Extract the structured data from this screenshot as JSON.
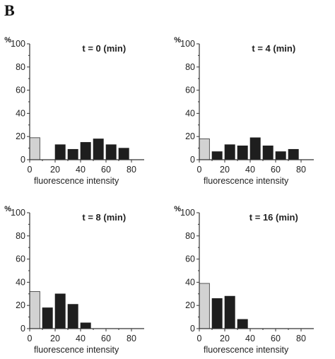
{
  "figure_label": "B",
  "colors": {
    "dark_bar": "#1e1e1e",
    "light_bar": "#d2d2d2",
    "light_bar_edge": "#555555",
    "axis": "#333333"
  },
  "chart_data": [
    {
      "type": "bar",
      "title": "t = 0 (min)",
      "xlabel": "fluorescence intensity",
      "ylabel": "%",
      "xlim": [
        0,
        90
      ],
      "ylim": [
        0,
        100
      ],
      "xticks": [
        0,
        20,
        40,
        60,
        80
      ],
      "yticks": [
        0,
        20,
        40,
        60,
        80,
        100
      ],
      "grid": false,
      "bars": [
        {
          "x0": 0,
          "x1": 8,
          "value": 19,
          "style": "light"
        },
        {
          "x0": 20,
          "x1": 28,
          "value": 13,
          "style": "dark"
        },
        {
          "x0": 30,
          "x1": 38,
          "value": 9,
          "style": "dark"
        },
        {
          "x0": 40,
          "x1": 48,
          "value": 15,
          "style": "dark"
        },
        {
          "x0": 50,
          "x1": 58,
          "value": 18,
          "style": "dark"
        },
        {
          "x0": 60,
          "x1": 68,
          "value": 13,
          "style": "dark"
        },
        {
          "x0": 70,
          "x1": 78,
          "value": 10,
          "style": "dark"
        }
      ]
    },
    {
      "type": "bar",
      "title": "t = 4 (min)",
      "xlabel": "fluorescence intensity",
      "ylabel": "%",
      "xlim": [
        0,
        90
      ],
      "ylim": [
        0,
        100
      ],
      "xticks": [
        0,
        20,
        40,
        60,
        80
      ],
      "yticks": [
        0,
        20,
        40,
        60,
        80,
        100
      ],
      "grid": false,
      "bars": [
        {
          "x0": 0,
          "x1": 8,
          "value": 18,
          "style": "light"
        },
        {
          "x0": 10,
          "x1": 18,
          "value": 7,
          "style": "dark"
        },
        {
          "x0": 20,
          "x1": 28,
          "value": 13,
          "style": "dark"
        },
        {
          "x0": 30,
          "x1": 38,
          "value": 12,
          "style": "dark"
        },
        {
          "x0": 40,
          "x1": 48,
          "value": 19,
          "style": "dark"
        },
        {
          "x0": 50,
          "x1": 58,
          "value": 12,
          "style": "dark"
        },
        {
          "x0": 60,
          "x1": 68,
          "value": 7,
          "style": "dark"
        },
        {
          "x0": 70,
          "x1": 78,
          "value": 9,
          "style": "dark"
        }
      ]
    },
    {
      "type": "bar",
      "title": "t = 8 (min)",
      "xlabel": "fluorescence intensity",
      "ylabel": "%",
      "xlim": [
        0,
        90
      ],
      "ylim": [
        0,
        100
      ],
      "xticks": [
        0,
        20,
        40,
        60,
        80
      ],
      "yticks": [
        0,
        20,
        40,
        60,
        80,
        100
      ],
      "grid": false,
      "bars": [
        {
          "x0": 0,
          "x1": 8,
          "value": 32,
          "style": "light"
        },
        {
          "x0": 10,
          "x1": 18,
          "value": 18,
          "style": "dark"
        },
        {
          "x0": 20,
          "x1": 28,
          "value": 30,
          "style": "dark"
        },
        {
          "x0": 30,
          "x1": 38,
          "value": 21,
          "style": "dark"
        },
        {
          "x0": 40,
          "x1": 48,
          "value": 5,
          "style": "dark"
        }
      ]
    },
    {
      "type": "bar",
      "title": "t = 16 (min)",
      "xlabel": "fluorescence intensity",
      "ylabel": "%",
      "xlim": [
        0,
        90
      ],
      "ylim": [
        0,
        100
      ],
      "xticks": [
        0,
        20,
        40,
        60,
        80
      ],
      "yticks": [
        0,
        20,
        40,
        60,
        80,
        100
      ],
      "grid": false,
      "bars": [
        {
          "x0": 0,
          "x1": 8,
          "value": 39,
          "style": "light"
        },
        {
          "x0": 10,
          "x1": 18,
          "value": 26,
          "style": "dark"
        },
        {
          "x0": 20,
          "x1": 28,
          "value": 28,
          "style": "dark"
        },
        {
          "x0": 30,
          "x1": 38,
          "value": 8,
          "style": "dark"
        }
      ]
    }
  ]
}
